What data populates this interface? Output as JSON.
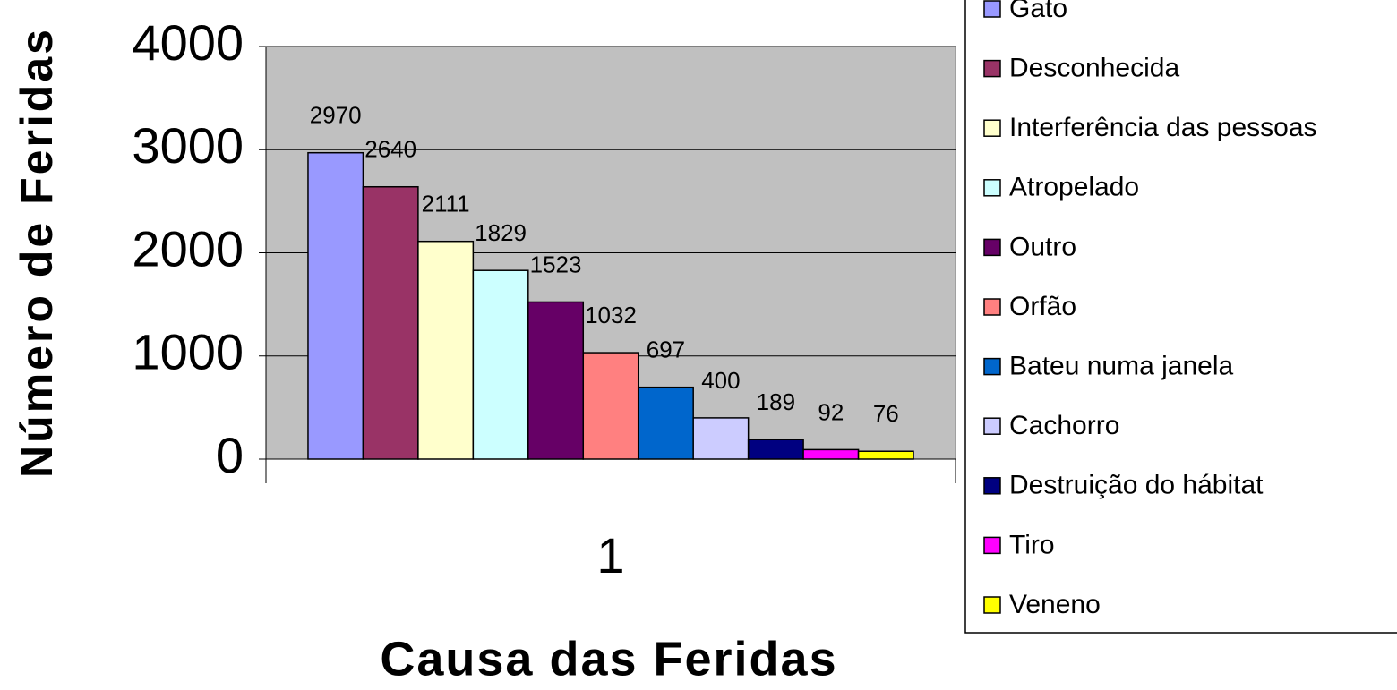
{
  "chart_data": {
    "type": "bar",
    "x_label": "Causa das Feridas",
    "y_label": "Número de Feridas",
    "categories": [
      "1"
    ],
    "series": [
      {
        "name": "Gato",
        "color": "#9999ff",
        "values": [
          2970
        ]
      },
      {
        "name": "Desconhecida",
        "color": "#993366",
        "values": [
          2640
        ]
      },
      {
        "name": "Interferência das pessoas",
        "color": "#ffffcc",
        "values": [
          2111
        ]
      },
      {
        "name": "Atropelado",
        "color": "#ccffff",
        "values": [
          1829
        ]
      },
      {
        "name": "Outro",
        "color": "#660066",
        "values": [
          1523
        ]
      },
      {
        "name": "Orfão",
        "color": "#ff8080",
        "values": [
          1032
        ]
      },
      {
        "name": "Bateu numa janela",
        "color": "#0066cc",
        "values": [
          697
        ]
      },
      {
        "name": "Cachorro",
        "color": "#ccccff",
        "values": [
          400
        ]
      },
      {
        "name": "Destruição do hábitat",
        "color": "#000080",
        "values": [
          189
        ]
      },
      {
        "name": "Tiro",
        "color": "#ff00ff",
        "values": [
          92
        ]
      },
      {
        "name": "Veneno",
        "color": "#ffff00",
        "values": [
          76
        ]
      }
    ],
    "ylim": [
      0,
      4000
    ],
    "yticks": [
      0,
      1000,
      2000,
      3000,
      4000
    ],
    "grid": true,
    "legend": "right",
    "plot_background": "#c0c0c0"
  }
}
